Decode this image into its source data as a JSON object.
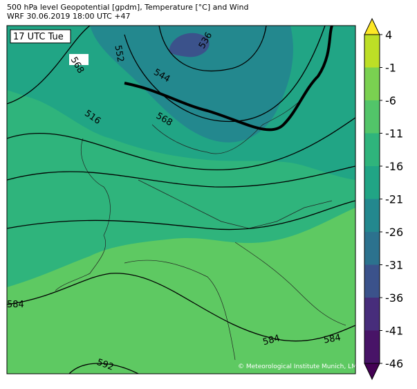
{
  "header": {
    "line1": "500 hPa level Geopotential [gpdm], Temperature [°C] and Wind",
    "line2": "WRF 30.06.2019 18:00 UTC +47"
  },
  "time_label": "17 UTC Tue",
  "contour_labels": [
    "568",
    "552",
    "536",
    "544",
    "516",
    "568",
    "584",
    "584",
    "584",
    "592"
  ],
  "credit": "© Meteorological Institute Munich, LMU",
  "colorbar": {
    "ticks": [
      4,
      -1,
      -6,
      -11,
      -16,
      -21,
      -26,
      -31,
      -36,
      -41,
      -46
    ],
    "band_colors": [
      "#bddf26",
      "#7ad151",
      "#52c569",
      "#2fb47c",
      "#21a585",
      "#23888e",
      "#2c728e",
      "#3b528b",
      "#472d7b",
      "#481467"
    ],
    "over_color": "#fde725",
    "under_color": "#440154"
  }
}
